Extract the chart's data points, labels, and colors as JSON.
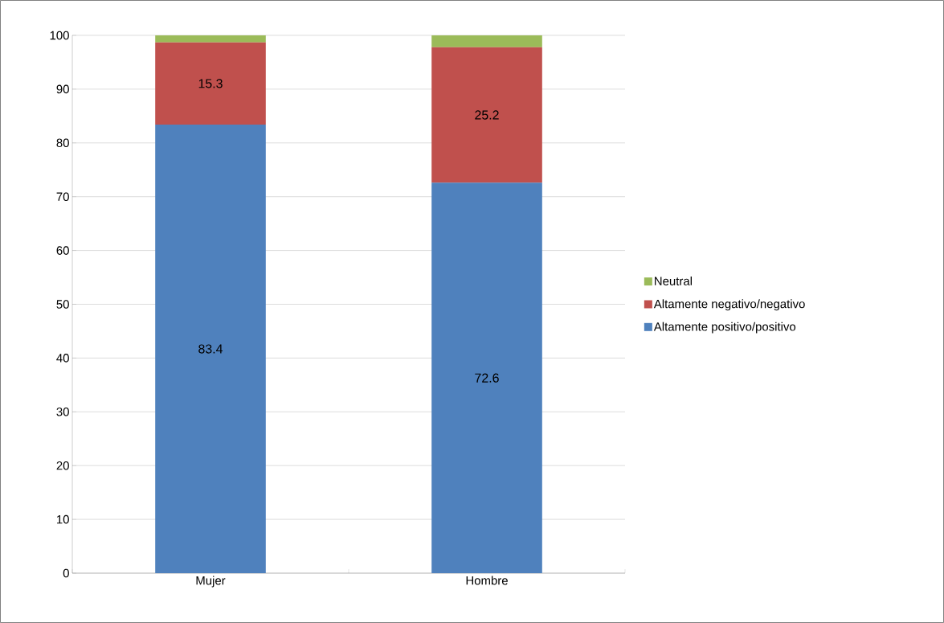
{
  "chart_data": {
    "type": "bar",
    "stacked": true,
    "categories": [
      "Mujer",
      "Hombre"
    ],
    "series": [
      {
        "name": "Altamente positivo/positivo",
        "color": "#4f81bd",
        "values": [
          83.4,
          72.6
        ],
        "value_labels": [
          "83.4",
          "72.6"
        ]
      },
      {
        "name": "Altamente negativo/negativo",
        "color": "#c0504d",
        "values": [
          15.3,
          25.2
        ],
        "value_labels": [
          "15.3",
          "25.2"
        ]
      },
      {
        "name": "Neutral",
        "color": "#9bbb59",
        "values": [
          1.3,
          2.2
        ]
      }
    ],
    "ylim": [
      0,
      100
    ],
    "yticks": [
      0,
      10,
      20,
      30,
      40,
      50,
      60,
      70,
      80,
      90,
      100
    ],
    "grid": "y",
    "legend": "right"
  }
}
